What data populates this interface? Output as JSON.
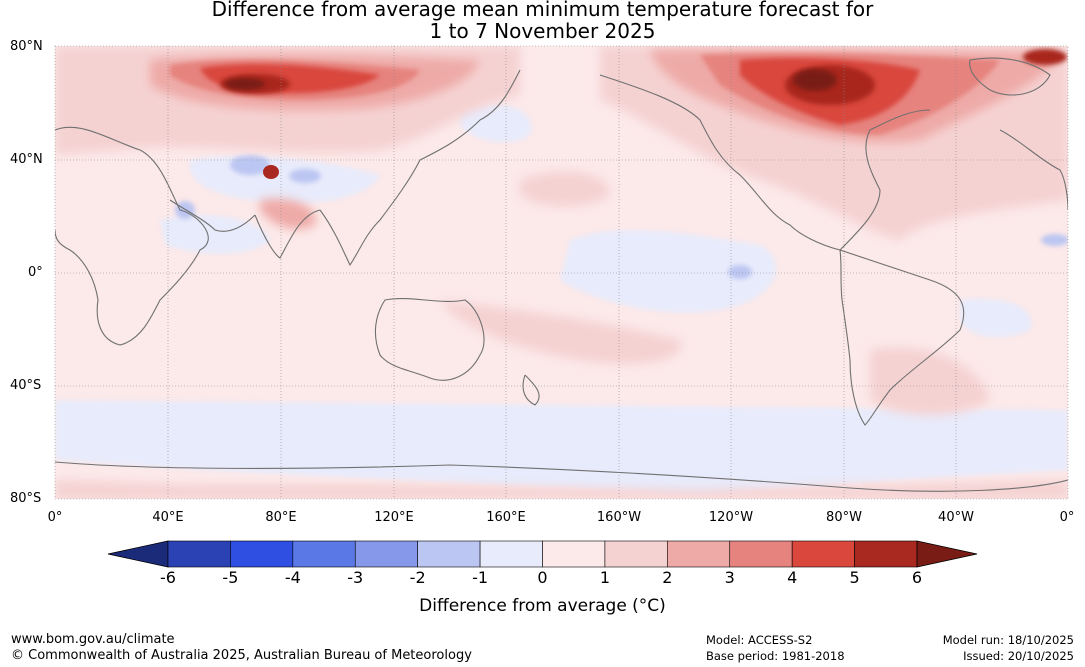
{
  "title": {
    "line1": "Difference from average mean minimum temperature forecast for",
    "line2": "1 to 7 November 2025"
  },
  "map": {
    "lat_labels": [
      "80°N",
      "40°N",
      "0°",
      "40°S",
      "80°S"
    ],
    "lon_labels": [
      "0°",
      "40°E",
      "80°E",
      "120°E",
      "160°E",
      "160°W",
      "120°W",
      "80°W",
      "40°W",
      "0°"
    ]
  },
  "colorbar": {
    "title": "Difference from average (°C)",
    "ticks": [
      "-6",
      "-5",
      "-4",
      "-3",
      "-2",
      "-1",
      "0",
      "1",
      "2",
      "3",
      "4",
      "5",
      "6"
    ],
    "colors": [
      "#1c2a7a",
      "#2a42b4",
      "#2f4fe3",
      "#5a78e6",
      "#8598ea",
      "#bcc6f2",
      "#e8ebfb",
      "#fce9e9",
      "#f5d2d2",
      "#eeaaa7",
      "#e6837e",
      "#d9473d",
      "#a9281f",
      "#7a1c16"
    ],
    "unit": "°C"
  },
  "footer": {
    "website": "www.bom.gov.au/climate",
    "copyright": "© Commonwealth of Australia 2025, Australian Bureau of Meteorology",
    "model": "Model: ACCESS-S2",
    "base_period": "Base period: 1981-2018",
    "model_run": "Model run: 18/10/2025",
    "issued": "Issued: 20/10/2025"
  }
}
